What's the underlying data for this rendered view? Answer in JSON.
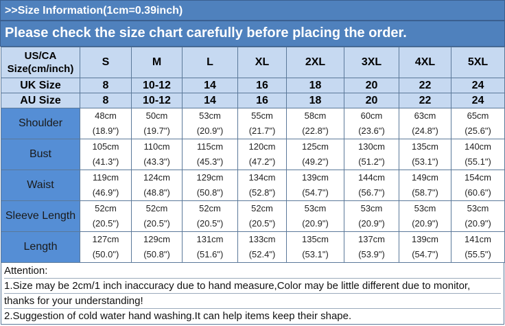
{
  "header": {
    "title": ">>Size Information(1cm=0.39inch)",
    "subtitle": "Please check the size chart carefully before placing the order."
  },
  "colors": {
    "banner": "#4f81bd",
    "header_cells": "#c6d9f1",
    "label_column": "#558ed5"
  },
  "table": {
    "size_label": [
      "US/CA",
      "Size(cm/inch)"
    ],
    "sizes": [
      "S",
      "M",
      "L",
      "XL",
      "2XL",
      "3XL",
      "4XL",
      "5XL"
    ],
    "uk": {
      "label": "UK Size",
      "values": [
        "8",
        "10-12",
        "14",
        "16",
        "18",
        "20",
        "22",
        "24"
      ]
    },
    "au": {
      "label": "AU Size",
      "values": [
        "8",
        "10-12",
        "14",
        "16",
        "18",
        "20",
        "22",
        "24"
      ]
    },
    "rows": [
      {
        "label": "Shoulder",
        "cm": [
          "48cm",
          "50cm",
          "53cm",
          "55cm",
          "58cm",
          "60cm",
          "63cm",
          "65cm"
        ],
        "inch": [
          "(18.9\")",
          "(19.7\")",
          "(20.9\")",
          "(21.7\")",
          "(22.8\")",
          "(23.6\")",
          "(24.8\")",
          "(25.6\")"
        ]
      },
      {
        "label": "Bust",
        "cm": [
          "105cm",
          "110cm",
          "115cm",
          "120cm",
          "125cm",
          "130cm",
          "135cm",
          "140cm"
        ],
        "inch": [
          "(41.3\")",
          "(43.3\")",
          "(45.3\")",
          "(47.2\")",
          "(49.2\")",
          "(51.2\")",
          "(53.1\")",
          "(55.1\")"
        ]
      },
      {
        "label": "Waist",
        "cm": [
          "119cm",
          "124cm",
          "129cm",
          "134cm",
          "139cm",
          "144cm",
          "149cm",
          "154cm"
        ],
        "inch": [
          "(46.9\")",
          "(48.8\")",
          "(50.8\")",
          "(52.8\")",
          "(54.7\")",
          "(56.7\")",
          "(58.7\")",
          "(60.6\")"
        ]
      },
      {
        "label": "Sleeve Length",
        "cm": [
          "52cm",
          "52cm",
          "52cm",
          "52cm",
          "53cm",
          "53cm",
          "53cm",
          "53cm"
        ],
        "inch": [
          "(20.5\")",
          "(20.5\")",
          "(20.5\")",
          "(20.5\")",
          "(20.9\")",
          "(20.9\")",
          "(20.9\")",
          "(20.9\")"
        ]
      },
      {
        "label": "Length",
        "cm": [
          "127cm",
          "129cm",
          "131cm",
          "133cm",
          "135cm",
          "137cm",
          "139cm",
          "141cm"
        ],
        "inch": [
          "(50.0\")",
          "(50.8\")",
          "(51.6\")",
          "(52.4\")",
          "(53.1\")",
          "(53.9\")",
          "(54.7\")",
          "(55.5\")"
        ]
      }
    ]
  },
  "notes": [
    "Attention:",
    "1.Size may be 2cm/1 inch inaccuracy due to hand measure,Color may be little different due to monitor,",
    "thanks for your understanding!",
    "2.Suggestion of cold water hand washing.It can help items keep their shape."
  ]
}
